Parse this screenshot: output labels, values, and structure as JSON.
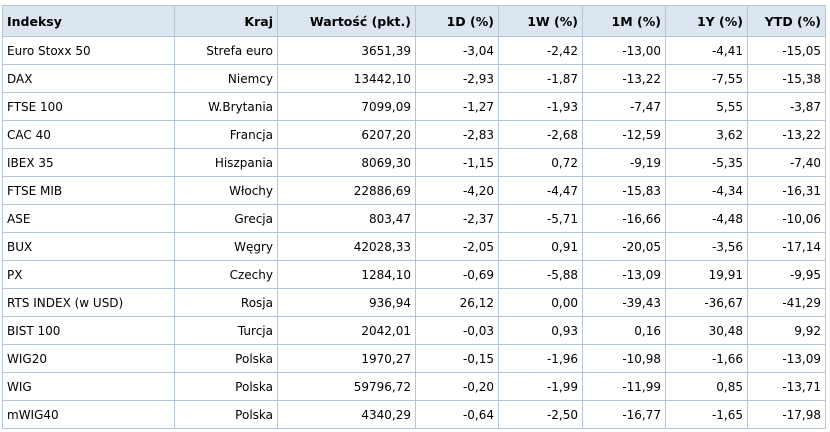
{
  "table": {
    "headers": [
      "Indeksy",
      "Kraj",
      "Wartość (pkt.)",
      "1D (%)",
      "1W (%)",
      "1M (%)",
      "1Y (%)",
      "YTD (%)"
    ],
    "rows": [
      [
        "Euro Stoxx 50",
        "Strefa euro",
        "3651,39",
        "-3,04",
        "-2,42",
        "-13,00",
        "-4,41",
        "-15,05"
      ],
      [
        "DAX",
        "Niemcy",
        "13442,10",
        "-2,93",
        "-1,87",
        "-13,22",
        "-7,55",
        "-15,38"
      ],
      [
        "FTSE 100",
        "W.Brytania",
        "7099,09",
        "-1,27",
        "-1,93",
        "-7,47",
        "5,55",
        "-3,87"
      ],
      [
        "CAC 40",
        "Francja",
        "6207,20",
        "-2,83",
        "-2,68",
        "-12,59",
        "3,62",
        "-13,22"
      ],
      [
        "IBEX 35",
        "Hiszpania",
        "8069,30",
        "-1,15",
        "0,72",
        "-9,19",
        "-5,35",
        "-7,40"
      ],
      [
        "FTSE MIB",
        "Włochy",
        "22886,69",
        "-4,20",
        "-4,47",
        "-15,83",
        "-4,34",
        "-16,31"
      ],
      [
        "ASE",
        "Grecja",
        "803,47",
        "-2,37",
        "-5,71",
        "-16,66",
        "-4,48",
        "-10,06"
      ],
      [
        "BUX",
        "Węgry",
        "42028,33",
        "-2,05",
        "0,91",
        "-20,05",
        "-3,56",
        "-17,14"
      ],
      [
        "PX",
        "Czechy",
        "1284,10",
        "-0,69",
        "-5,88",
        "-13,09",
        "19,91",
        "-9,95"
      ],
      [
        "RTS INDEX (w USD)",
        "Rosja",
        "936,94",
        "26,12",
        "0,00",
        "-39,43",
        "-36,67",
        "-41,29"
      ],
      [
        "BIST 100",
        "Turcja",
        "2042,01",
        "-0,03",
        "0,93",
        "0,16",
        "30,48",
        "9,92"
      ],
      [
        "WIG20",
        "Polska",
        "1970,27",
        "-0,15",
        "-1,96",
        "-10,98",
        "-1,66",
        "-13,09"
      ],
      [
        "WIG",
        "Polska",
        "59796,72",
        "-0,20",
        "-1,99",
        "-11,99",
        "0,85",
        "-13,71"
      ],
      [
        "mWIG40",
        "Polska",
        "4340,29",
        "-0,64",
        "-2,50",
        "-16,77",
        "-1,65",
        "-17,98"
      ]
    ]
  },
  "colors": {
    "header_background": "#dbe6f1",
    "border": "#b7c6d6"
  }
}
